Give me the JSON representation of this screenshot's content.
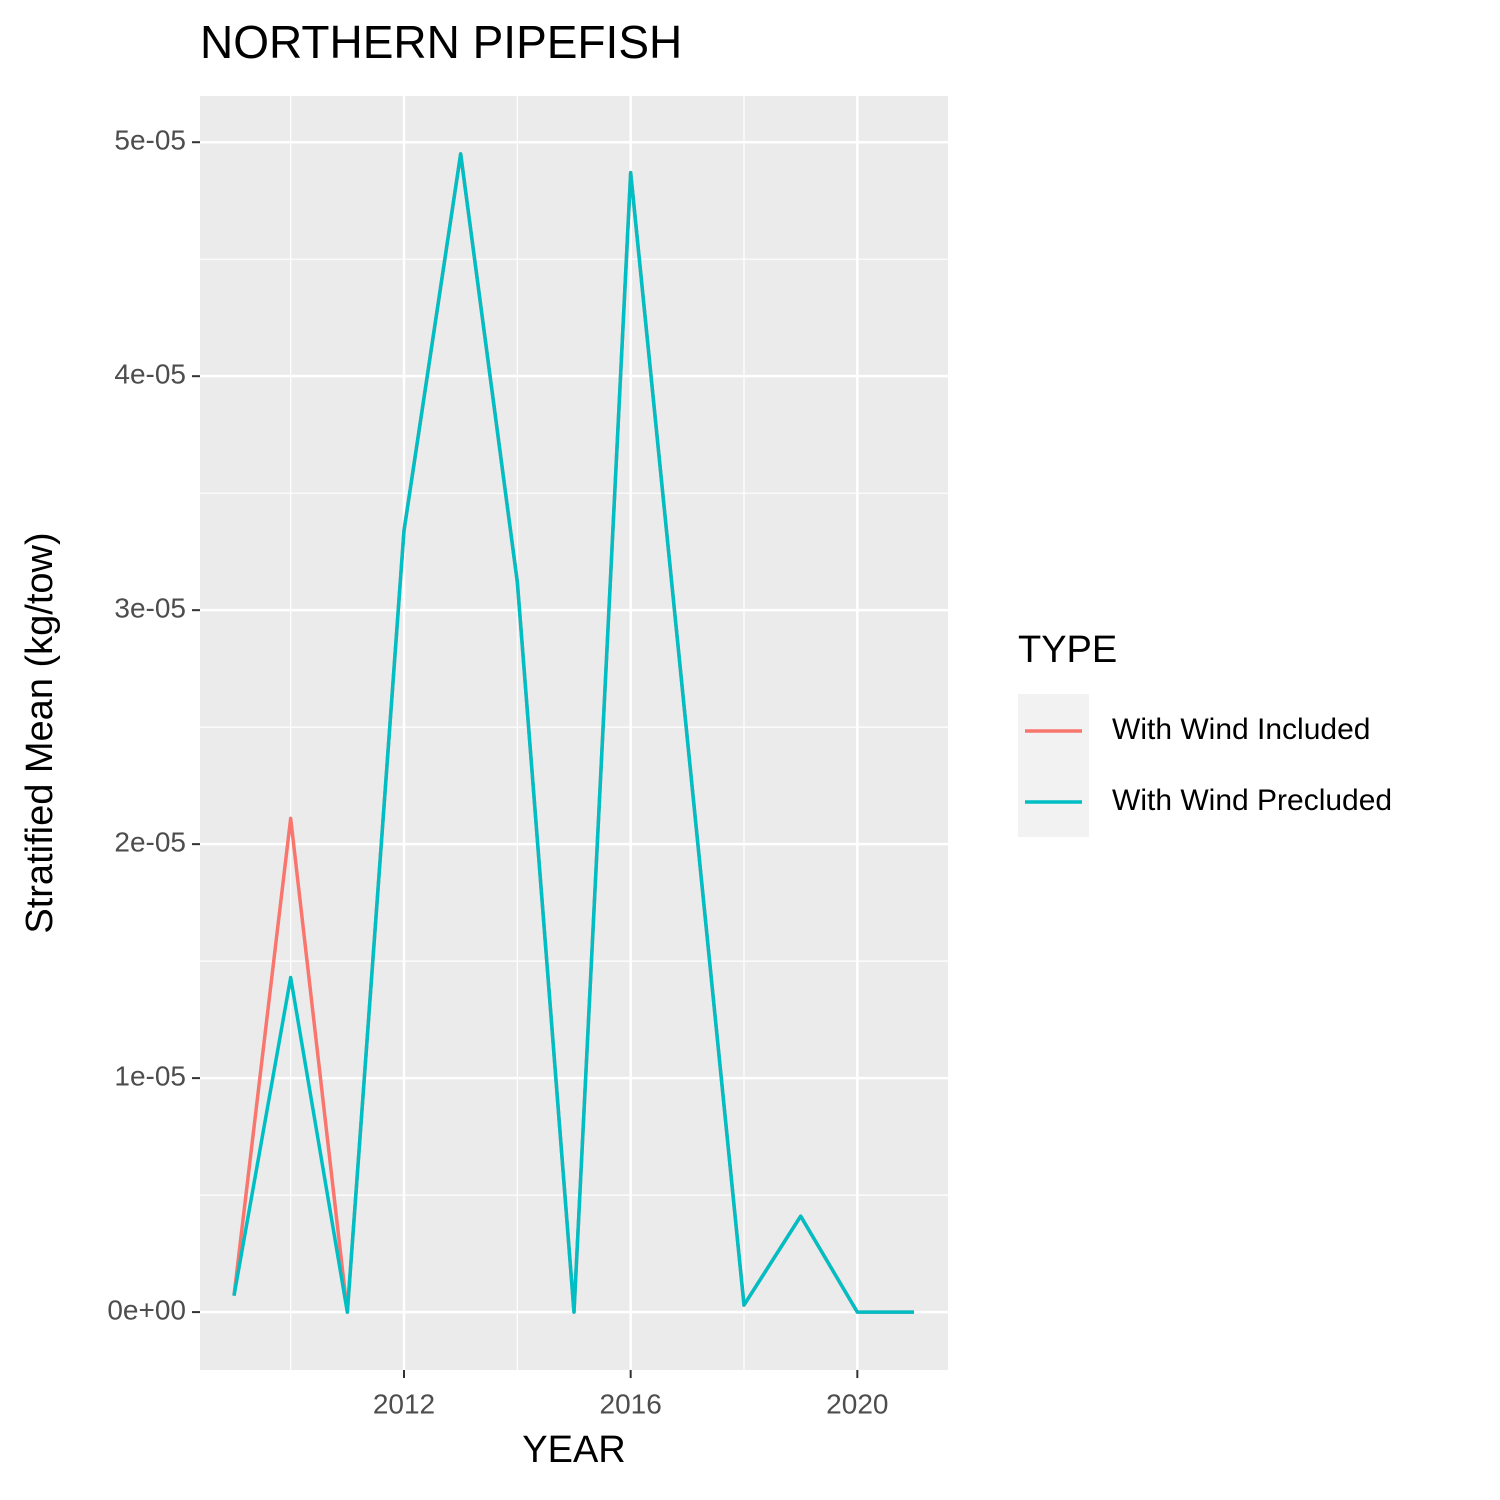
{
  "chart_data": {
    "type": "line",
    "title": "NORTHERN PIPEFISH",
    "x_label": "YEAR",
    "y_label": "Stratified Mean (kg/tow)",
    "x": [
      2009,
      2010,
      2011,
      2012,
      2013,
      2014,
      2015,
      2016,
      2017,
      2018,
      2019,
      2020,
      2021
    ],
    "series": [
      {
        "name": "With Wind Included",
        "color": "#F8766D",
        "values": [
          7e-07,
          2.11e-05,
          0,
          3.34e-05,
          4.95e-05,
          3.12e-05,
          0,
          4.87e-05,
          2.45e-05,
          3e-07,
          4.1e-06,
          0,
          0
        ]
      },
      {
        "name": "With Wind Precluded",
        "color": "#00BFC4",
        "values": [
          7e-07,
          1.43e-05,
          0,
          3.34e-05,
          4.95e-05,
          3.12e-05,
          0,
          4.87e-05,
          2.45e-05,
          3e-07,
          4.1e-06,
          0,
          0
        ]
      }
    ],
    "xlim": [
      2008.4,
      2021.6
    ],
    "xticks": [
      2012,
      2016,
      2020
    ],
    "ylim": [
      -2.475e-06,
      5.1975e-05
    ],
    "yticks": [
      {
        "value": 0,
        "label": "0e+00"
      },
      {
        "value": 1e-05,
        "label": "1e-05"
      },
      {
        "value": 2e-05,
        "label": "2e-05"
      },
      {
        "value": 3e-05,
        "label": "3e-05"
      },
      {
        "value": 4e-05,
        "label": "4e-05"
      },
      {
        "value": 5e-05,
        "label": "5e-05"
      }
    ],
    "legend_title": "TYPE",
    "legend_position": "right",
    "grid": true
  }
}
